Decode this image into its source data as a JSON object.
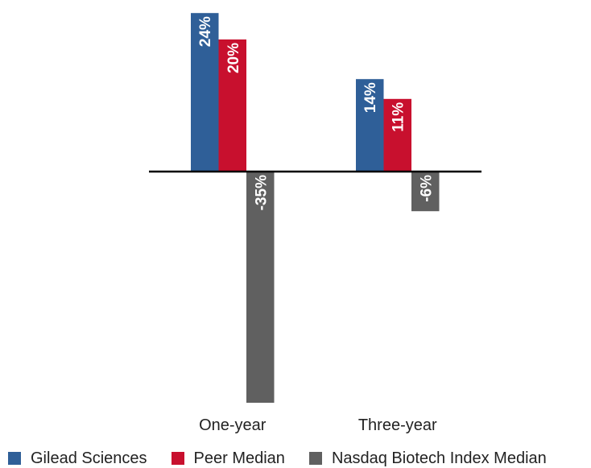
{
  "chart_data": {
    "type": "bar",
    "categories": [
      "One-year",
      "Three-year"
    ],
    "series": [
      {
        "name": "Gilead Sciences",
        "values": [
          24,
          14
        ],
        "labels": [
          "24%",
          "14%"
        ],
        "color": "#2f5f98"
      },
      {
        "name": "Peer Median",
        "values": [
          20,
          11
        ],
        "labels": [
          "20%",
          "11%"
        ],
        "color": "#c8102e"
      },
      {
        "name": "Nasdaq Biotech Index Median",
        "values": [
          -35,
          -6
        ],
        "labels": [
          "-35%",
          "-6%"
        ],
        "color": "#606060"
      }
    ],
    "title": "",
    "xlabel": "",
    "ylabel": "",
    "ylim": [
      -35,
      24
    ],
    "grid": false,
    "legend_position": "bottom",
    "baseline_color": "#000000"
  }
}
